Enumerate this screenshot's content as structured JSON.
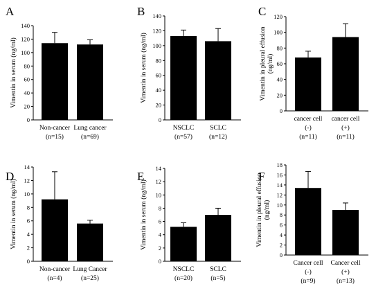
{
  "chart_data": [
    {
      "type": "bar",
      "panel": "A",
      "ylabel": "Vimentin in serum (ng/ml)",
      "ylim": [
        0,
        140
      ],
      "yticks": [
        0,
        20,
        40,
        60,
        80,
        100,
        120,
        140
      ],
      "categories": [
        [
          "Non-cancer",
          "(n=15)"
        ],
        [
          "Lung cancer",
          "(n=69)"
        ]
      ],
      "values": [
        114,
        112
      ],
      "errors": [
        16,
        7
      ]
    },
    {
      "type": "bar",
      "panel": "B",
      "ylabel": "Vimentin in serum (ng/ml)",
      "ylim": [
        0,
        140
      ],
      "yticks": [
        0,
        20,
        40,
        60,
        80,
        100,
        120,
        140
      ],
      "categories": [
        [
          "NSCLC",
          "(n=57)"
        ],
        [
          "SCLC",
          "(n=12)"
        ]
      ],
      "values": [
        113,
        106
      ],
      "errors": [
        8,
        17
      ]
    },
    {
      "type": "bar",
      "panel": "C",
      "ylabel": [
        "Vimentin in pleural effusion",
        "(ng/ml)"
      ],
      "ylim": [
        0,
        120
      ],
      "yticks": [
        0,
        20,
        40,
        60,
        80,
        100,
        120
      ],
      "categories": [
        [
          "cancer cell",
          "(-)",
          "(n=11)"
        ],
        [
          "cancer cell",
          "(+)",
          "(n=11)"
        ]
      ],
      "values": [
        68,
        94
      ],
      "errors": [
        8,
        17
      ]
    },
    {
      "type": "bar",
      "panel": "D",
      "ylabel": "Vimentin in serum (ng/ml)",
      "ylim": [
        0,
        14
      ],
      "yticks": [
        0,
        2,
        4,
        6,
        8,
        10,
        12,
        14
      ],
      "categories": [
        [
          "Non-cancer",
          "(n=4)"
        ],
        [
          "Lung Cancer",
          "(n=25)"
        ]
      ],
      "values": [
        9.2,
        5.6
      ],
      "errors": [
        4.1,
        0.5
      ]
    },
    {
      "type": "bar",
      "panel": "E",
      "ylabel": "Vimentin in serum (ng/ml)",
      "ylim": [
        0,
        14
      ],
      "yticks": [
        0,
        2,
        4,
        6,
        8,
        10,
        12,
        14
      ],
      "categories": [
        [
          "NSCLC",
          "(n=20)"
        ],
        [
          "SCLC",
          "(n=5)"
        ]
      ],
      "values": [
        5.2,
        7.0
      ],
      "errors": [
        0.6,
        1.0
      ]
    },
    {
      "type": "bar",
      "panel": "F",
      "ylabel": [
        "Vimentin in pleural effusion",
        "(ng/ml)"
      ],
      "ylim": [
        0,
        18
      ],
      "yticks": [
        0,
        2,
        4,
        6,
        8,
        10,
        12,
        14,
        16,
        18
      ],
      "categories": [
        [
          "Cancer cell",
          "(-)",
          "(n=9)"
        ],
        [
          "Cancer cell",
          "(+)",
          "(n=13)"
        ]
      ],
      "values": [
        13.4,
        9.0
      ],
      "errors": [
        3.3,
        1.4
      ]
    }
  ]
}
